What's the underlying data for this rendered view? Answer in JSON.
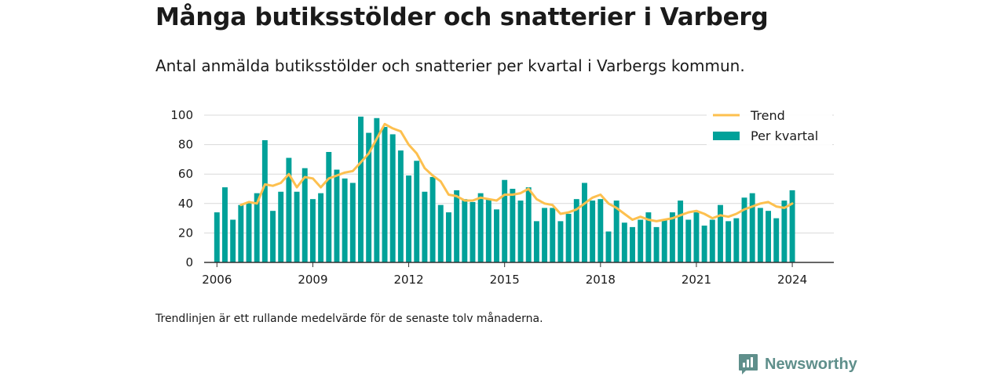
{
  "header": {
    "title": "Många butiksstölder och snatterier i Varberg",
    "subtitle": "Antal anmälda butiksstölder och snatterier per kvartal i Varbergs kommun."
  },
  "footer": {
    "note": "Trendlinjen är ett rullande medelvärde för de senaste tolv månaderna.",
    "brand": "Newsworthy",
    "brand_icon": "bar-chart-speech-bubble-icon"
  },
  "colors": {
    "bar": "#00a199",
    "trend": "#fdc04f",
    "grid": "#d9d9d9",
    "axis": "#333333",
    "brand": "#5f8f8b"
  },
  "chart_data": {
    "type": "bar",
    "x_start": 2006,
    "x_step": 0.25,
    "xlim": [
      2005.6,
      2025.3
    ],
    "ylim": [
      0,
      100
    ],
    "xticks": [
      2006,
      2009,
      2012,
      2015,
      2018,
      2021,
      2024
    ],
    "yticks": [
      0,
      20,
      40,
      60,
      80,
      100
    ],
    "grid": true,
    "legend_position": "top-right",
    "series": [
      {
        "name": "Per kvartal",
        "kind": "bar",
        "values": [
          34,
          51,
          29,
          39,
          41,
          47,
          83,
          35,
          48,
          71,
          48,
          64,
          43,
          47,
          75,
          63,
          57,
          54,
          99,
          88,
          98,
          92,
          87,
          76,
          59,
          69,
          48,
          58,
          39,
          34,
          49,
          43,
          41,
          47,
          43,
          36,
          56,
          50,
          42,
          51,
          28,
          37,
          37,
          28,
          33,
          43,
          54,
          42,
          43,
          21,
          42,
          27,
          24,
          29,
          34,
          24,
          29,
          34,
          42,
          29,
          34,
          25,
          29,
          39,
          28,
          30,
          44,
          47,
          37,
          35,
          30,
          42,
          49
        ]
      },
      {
        "name": "Trend",
        "kind": "line",
        "start_index": 3,
        "values": [
          39,
          41,
          40,
          53,
          52,
          54,
          60,
          51,
          58,
          57,
          51,
          57,
          59,
          61,
          62,
          68,
          74,
          84,
          94,
          91,
          89,
          80,
          74,
          64,
          59,
          55,
          46,
          45,
          42,
          42,
          44,
          43,
          42,
          46,
          46,
          47,
          50,
          43,
          40,
          39,
          33,
          34,
          36,
          40,
          44,
          46,
          40,
          37,
          33,
          29,
          31,
          29,
          28,
          29,
          30,
          32,
          34,
          35,
          33,
          30,
          32,
          31,
          33,
          36,
          38,
          40,
          41,
          38,
          37,
          40
        ]
      }
    ]
  }
}
